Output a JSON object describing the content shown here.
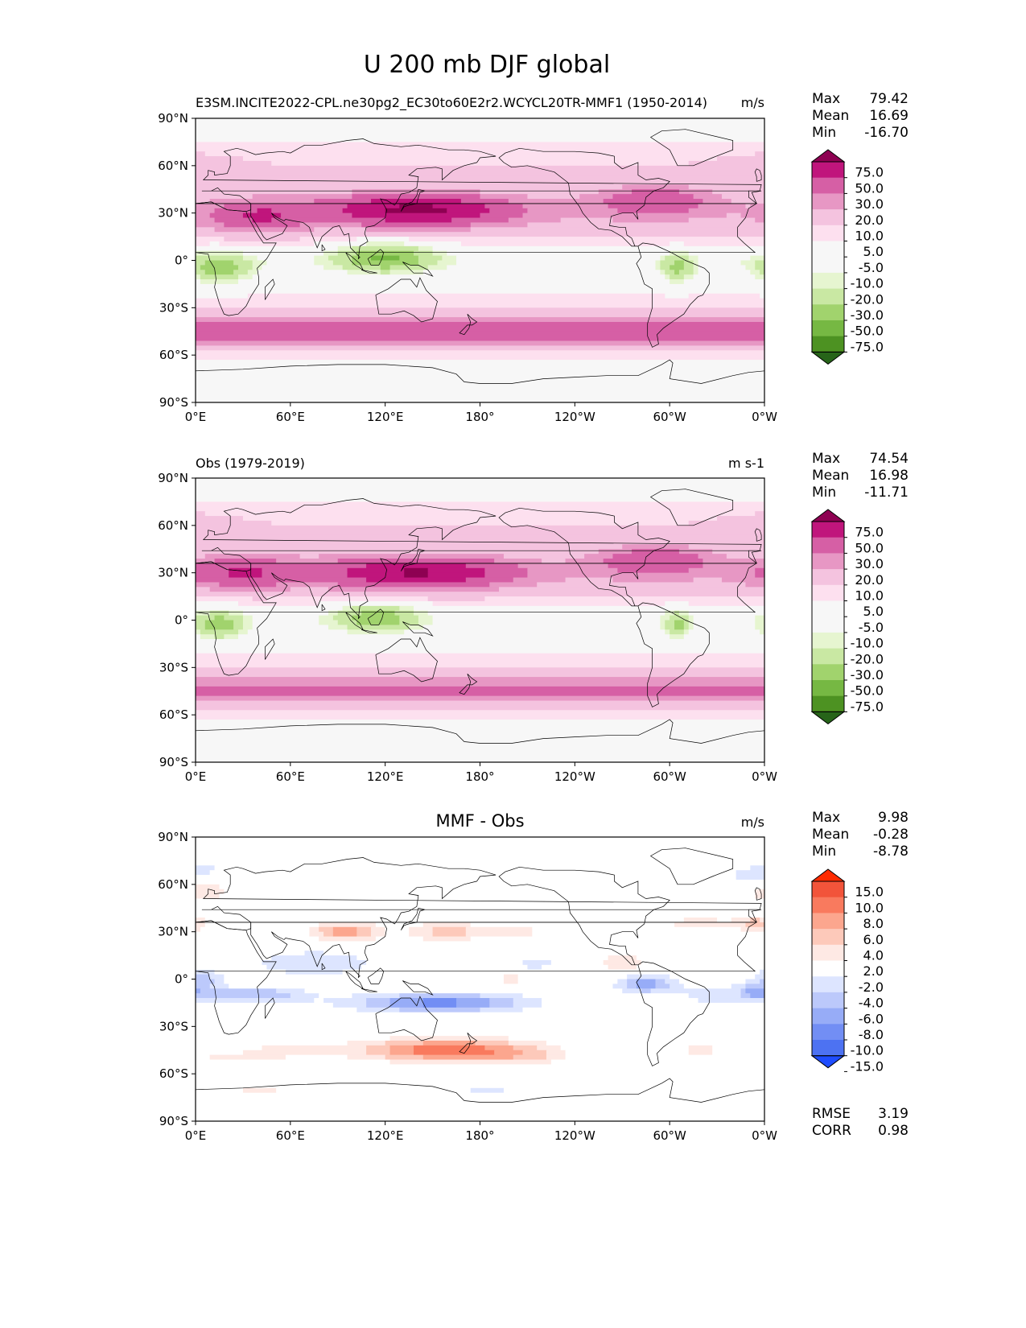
{
  "figure_title": "U 200 mb DJF global",
  "colors": {
    "pos": [
      "#f7f7f7",
      "#fde0ef",
      "#f4c3df",
      "#e797c4",
      "#d65fa5",
      "#c0157c",
      "#8e0152"
    ],
    "neg": [
      "#f7f7f7",
      "#e6f5d0",
      "#c9e8a3",
      "#a1d36d",
      "#76b843",
      "#4d9222",
      "#276419"
    ],
    "diff_pos": [
      "#fee9e4",
      "#fdc9ba",
      "#fca68e",
      "#f97a5e",
      "#f2543a",
      "#ff2b00"
    ],
    "diff_neg": [
      "#dde5ff",
      "#bcc9fb",
      "#97acf7",
      "#728ef4",
      "#4d72f2",
      "#1f4dff"
    ],
    "land": "#000000"
  },
  "chart_data": [
    {
      "type": "heatmap",
      "title": "E3SM.INCITE2022-CPL.ne30pg2_EC30to60E2r2.WCYCL20TR-MMF1 (1950-2014)",
      "units": "m/s",
      "stats": [
        {
          "label": "Max",
          "value": "79.42"
        },
        {
          "label": "Mean",
          "value": "16.69"
        },
        {
          "label": "Min",
          "value": "-16.70"
        }
      ],
      "xticks": [
        "0°E",
        "60°E",
        "120°E",
        "180°",
        "120°W",
        "60°W",
        "0°W"
      ],
      "yticks": [
        "90°N",
        "60°N",
        "30°N",
        "0°",
        "30°S",
        "60°S",
        "90°S"
      ],
      "xlim": [
        0,
        360
      ],
      "ylim": [
        -90,
        90
      ],
      "colorbar_levels": [
        "75.0",
        "50.0",
        "30.0",
        "20.0",
        "10.0",
        "5.0",
        "-5.0",
        "-10.0",
        "-20.0",
        "-30.0",
        "-50.0",
        "-75.0"
      ],
      "zonal_jets": [
        {
          "lat": 32,
          "lon_center": 140,
          "lon_width": 110,
          "peak": 79.42
        },
        {
          "lat": 28,
          "lon_center": 40,
          "lon_width": 60,
          "peak": 50
        },
        {
          "lat": 38,
          "lon_center": 290,
          "lon_width": 70,
          "peak": 45
        },
        {
          "lat": -45,
          "lon_center": 180,
          "lon_width": 360,
          "peak": 40
        },
        {
          "lat": 60,
          "lon_center": 0,
          "lon_width": 60,
          "peak": 20
        },
        {
          "lat": 2,
          "lon_center": 120,
          "lon_width": 60,
          "peak": -16.7
        },
        {
          "lat": -5,
          "lon_center": 15,
          "lon_width": 40,
          "peak": -12
        },
        {
          "lat": -5,
          "lon_center": 305,
          "lon_width": 20,
          "peak": -8
        }
      ]
    },
    {
      "type": "heatmap",
      "title": "Obs (1979-2019)",
      "units": "m s-1",
      "stats": [
        {
          "label": "Max",
          "value": "74.54"
        },
        {
          "label": "Mean",
          "value": "16.98"
        },
        {
          "label": "Min",
          "value": "-11.71"
        }
      ],
      "xticks": [
        "0°E",
        "60°E",
        "120°E",
        "180°",
        "120°W",
        "60°W",
        "0°W"
      ],
      "yticks": [
        "90°N",
        "60°N",
        "30°N",
        "0°",
        "30°S",
        "60°S",
        "90°S"
      ],
      "xlim": [
        0,
        360
      ],
      "ylim": [
        -90,
        90
      ],
      "colorbar_levels": [
        "75.0",
        "50.0",
        "30.0",
        "20.0",
        "10.0",
        "5.0",
        "-5.0",
        "-10.0",
        "-20.0",
        "-30.0",
        "-50.0",
        "-75.0"
      ],
      "zonal_jets": [
        {
          "lat": 30,
          "lon_center": 140,
          "lon_width": 110,
          "peak": 74.54
        },
        {
          "lat": 30,
          "lon_center": 30,
          "lon_width": 70,
          "peak": 50
        },
        {
          "lat": 38,
          "lon_center": 290,
          "lon_width": 70,
          "peak": 45
        },
        {
          "lat": -45,
          "lon_center": 180,
          "lon_width": 360,
          "peak": 35
        },
        {
          "lat": 60,
          "lon_center": 0,
          "lon_width": 60,
          "peak": 20
        },
        {
          "lat": 2,
          "lon_center": 115,
          "lon_width": 50,
          "peak": -11.71
        },
        {
          "lat": -3,
          "lon_center": 15,
          "lon_width": 30,
          "peak": -10
        },
        {
          "lat": -3,
          "lon_center": 305,
          "lon_width": 15,
          "peak": -7
        }
      ]
    },
    {
      "type": "heatmap",
      "title": "MMF - Obs",
      "units": "m/s",
      "stats": [
        {
          "label": "Max",
          "value": "9.98"
        },
        {
          "label": "Mean",
          "value": "-0.28"
        },
        {
          "label": "Min",
          "value": "-8.78"
        }
      ],
      "extra_stats": [
        {
          "label": "RMSE",
          "value": "3.19"
        },
        {
          "label": "CORR",
          "value": "0.98"
        }
      ],
      "xticks": [
        "0°E",
        "60°E",
        "120°E",
        "180°",
        "120°W",
        "60°W",
        "0°W"
      ],
      "yticks": [
        "90°N",
        "60°N",
        "30°N",
        "0°",
        "30°S",
        "60°S",
        "90°S"
      ],
      "xlim": [
        0,
        360
      ],
      "ylim": [
        -90,
        90
      ],
      "colorbar_levels": [
        "15.0",
        "10.0",
        "8.0",
        "6.0",
        "4.0",
        "2.0",
        "-2.0",
        "-4.0",
        "-6.0",
        "-8.0",
        "-10.0",
        "-15.0"
      ],
      "anomalies": [
        {
          "lat": -45,
          "lon": 160,
          "dlon": 55,
          "dlat": 7,
          "value": 9.98
        },
        {
          "lat": 30,
          "lon": 95,
          "dlon": 22,
          "dlat": 6,
          "value": 7
        },
        {
          "lat": 30,
          "lon": 160,
          "dlon": 25,
          "dlat": 6,
          "value": 5
        },
        {
          "lat": 30,
          "lon": 205,
          "dlon": 15,
          "dlat": 5,
          "value": 3
        },
        {
          "lat": 55,
          "lon": 5,
          "dlon": 15,
          "dlat": 6,
          "value": 4
        },
        {
          "lat": 35,
          "lon": 355,
          "dlon": 12,
          "dlat": 5,
          "value": 5
        },
        {
          "lat": 35,
          "lon": 320,
          "dlon": 25,
          "dlat": 5,
          "value": 3
        },
        {
          "lat": 10,
          "lon": 270,
          "dlon": 20,
          "dlat": 7,
          "value": 3
        },
        {
          "lat": 0,
          "lon": 200,
          "dlon": 15,
          "dlat": 5,
          "value": 2.5
        },
        {
          "lat": -45,
          "lon": 60,
          "dlon": 30,
          "dlat": 5,
          "value": 3
        },
        {
          "lat": -45,
          "lon": 320,
          "dlon": 20,
          "dlat": 5,
          "value": 2.5
        },
        {
          "lat": -50,
          "lon": 210,
          "dlon": 25,
          "dlat": 5,
          "value": 2.5
        },
        {
          "lat": -50,
          "lon": 20,
          "dlon": 30,
          "dlat": 4,
          "value": 2.2
        },
        {
          "lat": -70,
          "lon": 40,
          "dlon": 40,
          "dlat": 4,
          "value": 2.2
        },
        {
          "lat": -15,
          "lon": 155,
          "dlon": 55,
          "dlat": 6,
          "value": -8.78
        },
        {
          "lat": -10,
          "lon": 35,
          "dlon": 35,
          "dlat": 5,
          "value": -6
        },
        {
          "lat": 0,
          "lon": 5,
          "dlon": 12,
          "dlat": 6,
          "value": -5
        },
        {
          "lat": 10,
          "lon": 75,
          "dlon": 40,
          "dlat": 8,
          "value": -4
        },
        {
          "lat": -3,
          "lon": 285,
          "dlon": 18,
          "dlat": 6,
          "value": -7
        },
        {
          "lat": 10,
          "lon": 215,
          "dlon": 15,
          "dlat": 5,
          "value": -3
        },
        {
          "lat": -10,
          "lon": 330,
          "dlon": 25,
          "dlat": 8,
          "value": -3
        },
        {
          "lat": -8,
          "lon": 355,
          "dlon": 10,
          "dlat": 5,
          "value": -5
        },
        {
          "lat": 65,
          "lon": 350,
          "dlon": 15,
          "dlat": 5,
          "value": -3
        },
        {
          "lat": 70,
          "lon": 5,
          "dlon": 15,
          "dlat": 4,
          "value": -2.5
        },
        {
          "lat": -70,
          "lon": 185,
          "dlon": 25,
          "dlat": 4,
          "value": -2.5
        },
        {
          "lat": 15,
          "lon": 315,
          "dlon": 15,
          "dlat": 3,
          "value": -2.2
        }
      ]
    }
  ]
}
